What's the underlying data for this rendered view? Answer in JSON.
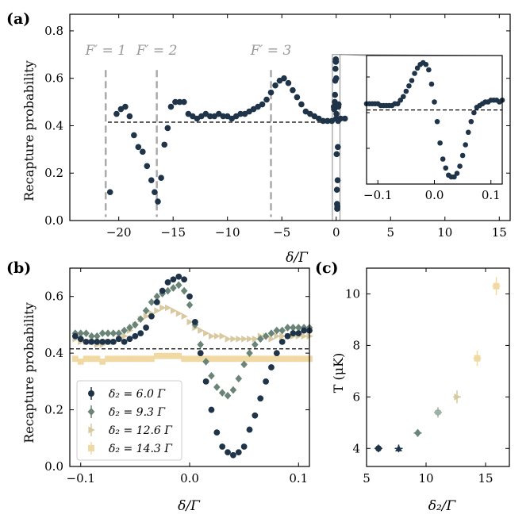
{
  "colors": {
    "s1": "#1f3448",
    "s2": "#6b8478",
    "s3": "#d9c9a1",
    "s4": "#f0d9a3",
    "vline": "#aaaaaa",
    "dash": "#000000"
  },
  "chart_data": [
    {
      "type": "scatter",
      "panel_label": "(a)",
      "xlabel": "δ/Γ",
      "ylabel": "Recapture probability",
      "xlim": [
        -24.5,
        16
      ],
      "ylim": [
        0,
        0.87
      ],
      "xticks": [
        "−20",
        "−15",
        "−10",
        "−5",
        "0",
        "5",
        "10",
        "15"
      ],
      "xtick_values": [
        -20,
        -15,
        -10,
        -5,
        0,
        5,
        10,
        15
      ],
      "yticks": [
        "0.0",
        "0.2",
        "0.4",
        "0.6",
        "0.8"
      ],
      "ytick_values": [
        0,
        0.2,
        0.4,
        0.6,
        0.8
      ],
      "baseline": 0.415,
      "baseline_range": [
        -21,
        0.5
      ],
      "markers": [
        {
          "label": "F′ = 1",
          "x": -21.2
        },
        {
          "label": "F′ = 2",
          "x": -16.5
        },
        {
          "label": "F′ = 3",
          "x": -6.0
        }
      ],
      "series": [
        {
          "name": "recapture",
          "x": [
            -20.8,
            -20.2,
            -19.8,
            -19.4,
            -19.0,
            -18.6,
            -18.2,
            -17.8,
            -17.4,
            -17.0,
            -16.7,
            -16.4,
            -16.1,
            -15.8,
            -15.5,
            -15.2,
            -14.8,
            -14.4,
            -14.0,
            -13.6,
            -13.2,
            -12.8,
            -12.4,
            -12.0,
            -11.6,
            -11.2,
            -10.8,
            -10.4,
            -10.0,
            -9.6,
            -9.2,
            -8.8,
            -8.4,
            -8.0,
            -7.6,
            -7.2,
            -6.8,
            -6.4,
            -6.0,
            -5.6,
            -5.2,
            -4.8,
            -4.4,
            -4.0,
            -3.6,
            -3.2,
            -2.8,
            -2.4,
            -2.0,
            -1.6,
            -1.2,
            -0.8,
            -0.4,
            0.0,
            0.4,
            0.8
          ],
          "y": [
            0.12,
            0.45,
            0.47,
            0.48,
            0.44,
            0.36,
            0.31,
            0.29,
            0.23,
            0.17,
            0.12,
            0.08,
            0.18,
            0.32,
            0.39,
            0.48,
            0.5,
            0.5,
            0.5,
            0.45,
            0.44,
            0.43,
            0.44,
            0.45,
            0.44,
            0.44,
            0.45,
            0.44,
            0.44,
            0.43,
            0.44,
            0.45,
            0.45,
            0.46,
            0.47,
            0.48,
            0.49,
            0.51,
            0.54,
            0.57,
            0.59,
            0.6,
            0.58,
            0.55,
            0.52,
            0.49,
            0.46,
            0.45,
            0.44,
            0.43,
            0.42,
            0.42,
            0.42,
            0.43,
            0.43,
            0.43
          ]
        },
        {
          "name": "resonance",
          "x": [
            -0.1,
            -0.09,
            -0.08,
            -0.07,
            -0.06,
            -0.05,
            -0.04,
            -0.03,
            -0.02,
            -0.015,
            -0.01,
            0.0,
            0.01,
            0.02,
            0.03,
            0.035,
            0.04,
            0.045,
            0.05,
            0.06,
            0.07,
            0.08,
            0.09,
            0.1
          ],
          "y": [
            0.48,
            0.47,
            0.47,
            0.48,
            0.5,
            0.53,
            0.59,
            0.64,
            0.67,
            0.68,
            0.67,
            0.6,
            0.45,
            0.28,
            0.13,
            0.07,
            0.05,
            0.05,
            0.06,
            0.17,
            0.31,
            0.42,
            0.48,
            0.49
          ]
        }
      ],
      "inset": {
        "xlim": [
          -0.12,
          0.12
        ],
        "ylim": [
          0,
          0.72
        ],
        "xticks": [
          "−0.1",
          "0.0",
          "0.1"
        ],
        "xtick_values": [
          -0.1,
          0,
          0.1
        ],
        "baseline": 0.415,
        "source_range": [
          -0.12,
          0.12
        ]
      }
    },
    {
      "type": "scatter",
      "panel_label": "(b)",
      "xlabel": "δ/Γ",
      "ylabel": "Recapture probability",
      "xlim": [
        -0.11,
        0.11
      ],
      "ylim": [
        0,
        0.7
      ],
      "xticks": [
        "−0.1",
        "0.0",
        "0.1"
      ],
      "xtick_values": [
        -0.1,
        0,
        0.1
      ],
      "yticks": [
        "0.0",
        "0.2",
        "0.4",
        "0.6"
      ],
      "ytick_values": [
        0,
        0.2,
        0.4,
        0.6
      ],
      "baseline": 0.415,
      "legend": {
        "position": "lower-left",
        "entries": [
          "δ₂ = 6.0 Γ",
          "δ₂ = 9.3 Γ",
          "δ₂ = 12.6 Γ",
          "δ₂ = 14.3 Γ"
        ]
      },
      "series": [
        {
          "name": "δ₂ = 6.0 Γ",
          "x": [
            -0.105,
            -0.1,
            -0.095,
            -0.09,
            -0.085,
            -0.08,
            -0.075,
            -0.07,
            -0.065,
            -0.06,
            -0.055,
            -0.05,
            -0.045,
            -0.04,
            -0.035,
            -0.03,
            -0.025,
            -0.02,
            -0.015,
            -0.01,
            -0.005,
            0.0,
            0.005,
            0.01,
            0.015,
            0.02,
            0.025,
            0.03,
            0.035,
            0.04,
            0.045,
            0.05,
            0.055,
            0.06,
            0.065,
            0.07,
            0.075,
            0.08,
            0.085,
            0.09,
            0.095,
            0.1,
            0.105,
            0.11
          ],
          "y": [
            0.46,
            0.45,
            0.44,
            0.44,
            0.44,
            0.44,
            0.44,
            0.44,
            0.45,
            0.44,
            0.45,
            0.46,
            0.47,
            0.49,
            0.53,
            0.58,
            0.62,
            0.65,
            0.66,
            0.67,
            0.66,
            0.6,
            0.51,
            0.4,
            0.3,
            0.2,
            0.12,
            0.07,
            0.05,
            0.04,
            0.05,
            0.07,
            0.13,
            0.18,
            0.24,
            0.3,
            0.35,
            0.4,
            0.44,
            0.46,
            0.47,
            0.47,
            0.48,
            0.48
          ]
        },
        {
          "name": "δ₂ = 9.3 Γ",
          "x": [
            -0.105,
            -0.1,
            -0.095,
            -0.09,
            -0.085,
            -0.08,
            -0.075,
            -0.07,
            -0.065,
            -0.06,
            -0.055,
            -0.05,
            -0.045,
            -0.04,
            -0.035,
            -0.03,
            -0.025,
            -0.02,
            -0.015,
            -0.01,
            -0.005,
            0.0,
            0.005,
            0.01,
            0.015,
            0.02,
            0.025,
            0.03,
            0.035,
            0.04,
            0.045,
            0.05,
            0.055,
            0.06,
            0.065,
            0.07,
            0.075,
            0.08,
            0.085,
            0.09,
            0.095,
            0.1,
            0.105,
            0.11
          ],
          "y": [
            0.47,
            0.47,
            0.47,
            0.46,
            0.46,
            0.47,
            0.47,
            0.47,
            0.47,
            0.48,
            0.49,
            0.5,
            0.52,
            0.55,
            0.58,
            0.6,
            0.61,
            0.62,
            0.63,
            0.64,
            0.62,
            0.57,
            0.5,
            0.43,
            0.37,
            0.32,
            0.28,
            0.26,
            0.25,
            0.27,
            0.31,
            0.36,
            0.4,
            0.43,
            0.45,
            0.46,
            0.47,
            0.48,
            0.48,
            0.49,
            0.49,
            0.49,
            0.49,
            0.49
          ]
        },
        {
          "name": "δ₂ = 12.6 Γ",
          "x": [
            -0.105,
            -0.1,
            -0.095,
            -0.09,
            -0.085,
            -0.08,
            -0.075,
            -0.07,
            -0.065,
            -0.06,
            -0.055,
            -0.05,
            -0.045,
            -0.04,
            -0.035,
            -0.03,
            -0.025,
            -0.02,
            -0.015,
            -0.01,
            -0.005,
            0.0,
            0.005,
            0.01,
            0.015,
            0.02,
            0.025,
            0.03,
            0.035,
            0.04,
            0.045,
            0.05,
            0.055,
            0.06,
            0.065,
            0.07,
            0.075,
            0.08,
            0.085,
            0.09,
            0.095,
            0.1,
            0.105,
            0.11
          ],
          "y": [
            0.45,
            0.44,
            0.44,
            0.44,
            0.43,
            0.43,
            0.44,
            0.44,
            0.45,
            0.46,
            0.48,
            0.5,
            0.52,
            0.53,
            0.54,
            0.55,
            0.56,
            0.56,
            0.55,
            0.54,
            0.53,
            0.51,
            0.49,
            0.48,
            0.47,
            0.46,
            0.46,
            0.46,
            0.45,
            0.45,
            0.45,
            0.45,
            0.45,
            0.45,
            0.46,
            0.46,
            0.45,
            0.46,
            0.46,
            0.46,
            0.46,
            0.46,
            0.46,
            0.46
          ]
        },
        {
          "name": "δ₂ = 14.3 Γ",
          "x": [
            -0.105,
            -0.1,
            -0.095,
            -0.09,
            -0.085,
            -0.08,
            -0.075,
            -0.07,
            -0.065,
            -0.06,
            -0.055,
            -0.05,
            -0.045,
            -0.04,
            -0.035,
            -0.03,
            -0.025,
            -0.02,
            -0.015,
            -0.01,
            -0.005,
            0.0,
            0.005,
            0.01,
            0.015,
            0.02,
            0.025,
            0.03,
            0.035,
            0.04,
            0.045,
            0.05,
            0.055,
            0.06,
            0.065,
            0.07,
            0.075,
            0.08,
            0.085,
            0.09,
            0.095,
            0.1,
            0.105,
            0.11
          ],
          "y": [
            0.38,
            0.37,
            0.38,
            0.38,
            0.38,
            0.37,
            0.38,
            0.38,
            0.38,
            0.38,
            0.38,
            0.38,
            0.38,
            0.38,
            0.38,
            0.39,
            0.39,
            0.39,
            0.39,
            0.39,
            0.38,
            0.38,
            0.38,
            0.38,
            0.38,
            0.38,
            0.38,
            0.38,
            0.38,
            0.38,
            0.38,
            0.38,
            0.38,
            0.38,
            0.38,
            0.38,
            0.38,
            0.38,
            0.38,
            0.38,
            0.38,
            0.38,
            0.38,
            0.38
          ]
        }
      ]
    },
    {
      "type": "scatter",
      "panel_label": "(c)",
      "xlabel": "δ₂/Γ",
      "ylabel": "T (μK)",
      "xlim": [
        5,
        17
      ],
      "ylim": [
        3.3,
        11
      ],
      "xticks": [
        "5",
        "10",
        "15"
      ],
      "xtick_values": [
        5,
        10,
        15
      ],
      "yticks": [
        "4",
        "6",
        "8",
        "10"
      ],
      "ytick_values": [
        4,
        6,
        8,
        10
      ],
      "points": [
        {
          "x": 6.0,
          "y": 4.0,
          "err": 0.15,
          "marker": "circle",
          "color": "s1"
        },
        {
          "x": 7.7,
          "y": 4.0,
          "err": 0.15,
          "marker": "triangle-up",
          "color": "s1"
        },
        {
          "x": 9.3,
          "y": 4.6,
          "err": 0.15,
          "marker": "diamond",
          "color": "s2"
        },
        {
          "x": 11.0,
          "y": 5.4,
          "err": 0.2,
          "marker": "hexagon",
          "color": "s2light"
        },
        {
          "x": 12.6,
          "y": 6.0,
          "err": 0.25,
          "marker": "triangle-right",
          "color": "s3"
        },
        {
          "x": 14.3,
          "y": 7.5,
          "err": 0.3,
          "marker": "square",
          "color": "s4"
        },
        {
          "x": 15.9,
          "y": 10.3,
          "err": 0.35,
          "marker": "square",
          "color": "s4"
        }
      ]
    }
  ]
}
